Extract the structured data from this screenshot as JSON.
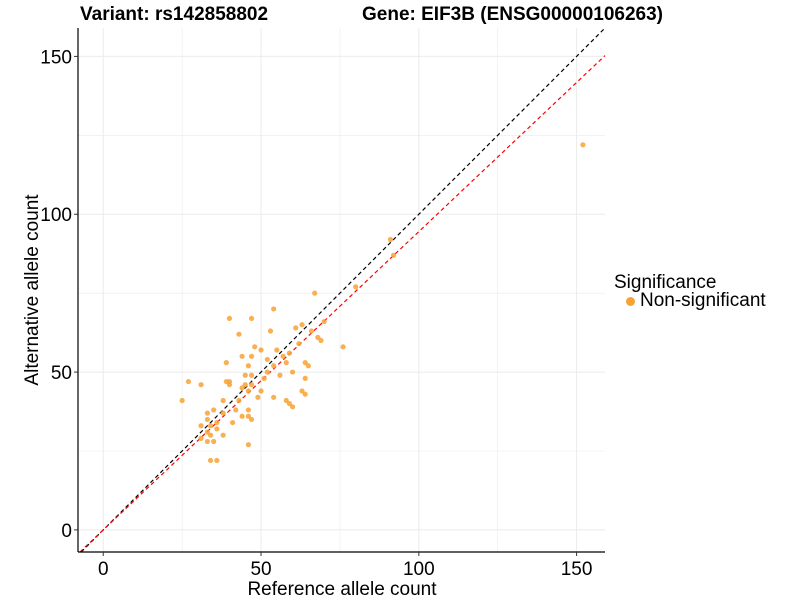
{
  "header": {
    "variant_title": "Variant: rs142858802",
    "gene_title": "Gene: EIF3B (ENSG00000106263)"
  },
  "legend": {
    "title": "Significance",
    "entries": [
      {
        "label": "Non-significant",
        "color": "#F7A235"
      }
    ]
  },
  "colors": {
    "identity_line": "#000000",
    "fit_line": "#FF0000",
    "points": "#F7A235",
    "grid": "#EBEBEB"
  },
  "chart_data": {
    "type": "scatter",
    "xlabel": "Reference allele count",
    "ylabel": "Alternative allele count",
    "xlim": [
      -8,
      159
    ],
    "ylim": [
      -7,
      159
    ],
    "x_ticks": [
      0,
      50,
      100,
      150
    ],
    "y_ticks": [
      0,
      50,
      100,
      150
    ],
    "reference_lines": [
      {
        "name": "identity",
        "slope": 1.0,
        "intercept": 0,
        "style": "dashed",
        "color": "#000000"
      },
      {
        "name": "fit",
        "slope": 0.945,
        "intercept": 0,
        "style": "dashed",
        "color": "#FF0000"
      }
    ],
    "series": [
      {
        "name": "Non-significant",
        "points": [
          [
            152,
            122
          ],
          [
            91,
            92
          ],
          [
            92,
            87
          ],
          [
            80,
            77
          ],
          [
            67,
            75
          ],
          [
            54,
            70
          ],
          [
            70,
            66
          ],
          [
            40,
            67
          ],
          [
            47,
            67
          ],
          [
            63,
            65
          ],
          [
            61,
            64
          ],
          [
            66,
            63
          ],
          [
            53,
            63
          ],
          [
            43,
            62
          ],
          [
            68,
            61
          ],
          [
            69,
            60
          ],
          [
            62,
            59
          ],
          [
            48,
            58
          ],
          [
            76,
            58
          ],
          [
            50,
            57
          ],
          [
            55,
            57
          ],
          [
            59,
            56
          ],
          [
            44,
            55
          ],
          [
            47,
            55
          ],
          [
            57,
            55
          ],
          [
            52,
            54
          ],
          [
            39,
            53
          ],
          [
            58,
            53
          ],
          [
            64,
            53
          ],
          [
            46,
            52
          ],
          [
            54,
            52
          ],
          [
            65,
            52
          ],
          [
            52,
            50
          ],
          [
            60,
            50
          ],
          [
            45,
            49
          ],
          [
            47,
            49
          ],
          [
            56,
            49
          ],
          [
            64,
            48
          ],
          [
            51,
            48
          ],
          [
            27,
            47
          ],
          [
            31,
            46
          ],
          [
            39,
            47
          ],
          [
            40,
            47
          ],
          [
            40,
            46
          ],
          [
            47,
            46
          ],
          [
            45,
            46
          ],
          [
            44,
            45
          ],
          [
            46,
            44
          ],
          [
            50,
            44
          ],
          [
            63,
            44
          ],
          [
            64,
            43
          ],
          [
            49,
            42
          ],
          [
            54,
            42
          ],
          [
            58,
            41
          ],
          [
            25,
            41
          ],
          [
            38,
            41
          ],
          [
            43,
            41
          ],
          [
            59,
            40
          ],
          [
            60,
            39
          ],
          [
            35,
            38
          ],
          [
            42,
            38
          ],
          [
            46,
            38
          ],
          [
            33,
            37
          ],
          [
            38,
            37
          ],
          [
            44,
            36
          ],
          [
            46,
            36
          ],
          [
            33,
            35
          ],
          [
            47,
            35
          ],
          [
            36,
            34
          ],
          [
            41,
            34
          ],
          [
            31,
            33
          ],
          [
            34,
            33
          ],
          [
            36,
            32
          ],
          [
            33,
            31
          ],
          [
            34,
            30
          ],
          [
            38,
            30
          ],
          [
            31,
            29
          ],
          [
            33,
            28
          ],
          [
            35,
            28
          ],
          [
            46,
            27
          ],
          [
            34,
            22
          ],
          [
            36,
            22
          ]
        ]
      }
    ]
  }
}
